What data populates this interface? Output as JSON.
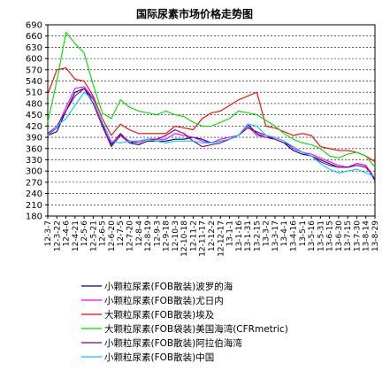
{
  "chart_data": {
    "type": "line",
    "title": "国际尿素市场价格走势图",
    "xlabel": "",
    "ylabel": "",
    "ylim": [
      180,
      690
    ],
    "y_ticks": [
      180,
      210,
      240,
      270,
      300,
      330,
      360,
      390,
      420,
      450,
      480,
      510,
      540,
      570,
      600,
      630,
      660,
      690
    ],
    "grid": true,
    "legend_position": "bottom",
    "categories": [
      "12-3-7",
      "12-3-22",
      "12-4-6",
      "12-4-21",
      "12-5-6",
      "12-5-21",
      "12-6-5",
      "12-6-20",
      "12-7-5",
      "12-7-20",
      "12-8-4",
      "12-8-19",
      "12-9-3",
      "12-9-18",
      "12-10-3",
      "12-10-18",
      "12-11-2",
      "12-11-17",
      "12-12-2",
      "12-12-17",
      "13-1-1",
      "13-1-16",
      "13-1-31",
      "13-2-15",
      "13-3-2",
      "13-3-17",
      "13-4-1",
      "13-4-16",
      "13-5-1",
      "13-5-16",
      "13-5-31",
      "13-6-15",
      "13-6-30",
      "13-7-15",
      "13-7-30",
      "13-8-14",
      "13-8-29"
    ],
    "series": [
      {
        "name": "小颗粒尿素(FOB散装)波罗的海",
        "color": "#000080",
        "values": [
          395,
          405,
          460,
          510,
          520,
          490,
          425,
          370,
          400,
          375,
          370,
          380,
          380,
          380,
          385,
          385,
          390,
          385,
          375,
          380,
          385,
          395,
          425,
          400,
          390,
          385,
          375,
          355,
          345,
          340,
          330,
          320,
          310,
          310,
          320,
          315,
          275
        ]
      },
      {
        "name": "小颗粒尿素(FOB散装)尤日内",
        "color": "#ff00ff",
        "values": [
          395,
          415,
          470,
          520,
          525,
          495,
          420,
          375,
          395,
          380,
          375,
          385,
          385,
          385,
          400,
          395,
          390,
          380,
          375,
          385,
          390,
          395,
          420,
          395,
          390,
          390,
          380,
          360,
          350,
          345,
          335,
          325,
          315,
          310,
          320,
          315,
          280
        ]
      },
      {
        "name": "大颗粒尿素(FOB散装)埃及",
        "color": "#ff0000",
        "values": [
          505,
          570,
          575,
          545,
          540,
          500,
          440,
          395,
          425,
          410,
          400,
          400,
          400,
          400,
          420,
          415,
          410,
          440,
          455,
          460,
          475,
          490,
          500,
          510,
          420,
          415,
          405,
          395,
          400,
          395,
          365,
          360,
          355,
          355,
          350,
          340,
          325
        ]
      },
      {
        "name": "大颗粒尿素(FOB袋装)美国海湾(CFRmetric)",
        "color": "#00dd00",
        "values": [
          430,
          540,
          670,
          640,
          615,
          530,
          455,
          440,
          490,
          470,
          460,
          455,
          450,
          460,
          450,
          445,
          430,
          420,
          420,
          430,
          440,
          460,
          455,
          450,
          435,
          420,
          400,
          385,
          375,
          370,
          360,
          340,
          335,
          345,
          350,
          340,
          310
        ]
      },
      {
        "name": "小颗粒尿素(FOB散装)阿拉伯海湾",
        "color": "#800080",
        "values": [
          400,
          420,
          460,
          500,
          520,
          480,
          420,
          365,
          395,
          375,
          380,
          385,
          385,
          395,
          410,
          400,
          380,
          365,
          370,
          375,
          385,
          395,
          415,
          405,
          395,
          385,
          375,
          365,
          350,
          340,
          325,
          315,
          310,
          310,
          315,
          310,
          280
        ]
      },
      {
        "name": "小颗粒尿素(FOB散装)中国",
        "color": "#00ccff",
        "values": [
          395,
          420,
          440,
          475,
          510,
          490,
          430,
          380,
          375,
          380,
          380,
          385,
          380,
          375,
          380,
          380,
          380,
          375,
          375,
          380,
          385,
          395,
          425,
          420,
          395,
          390,
          380,
          365,
          350,
          340,
          320,
          305,
          295,
          300,
          305,
          295,
          285
        ]
      }
    ]
  }
}
